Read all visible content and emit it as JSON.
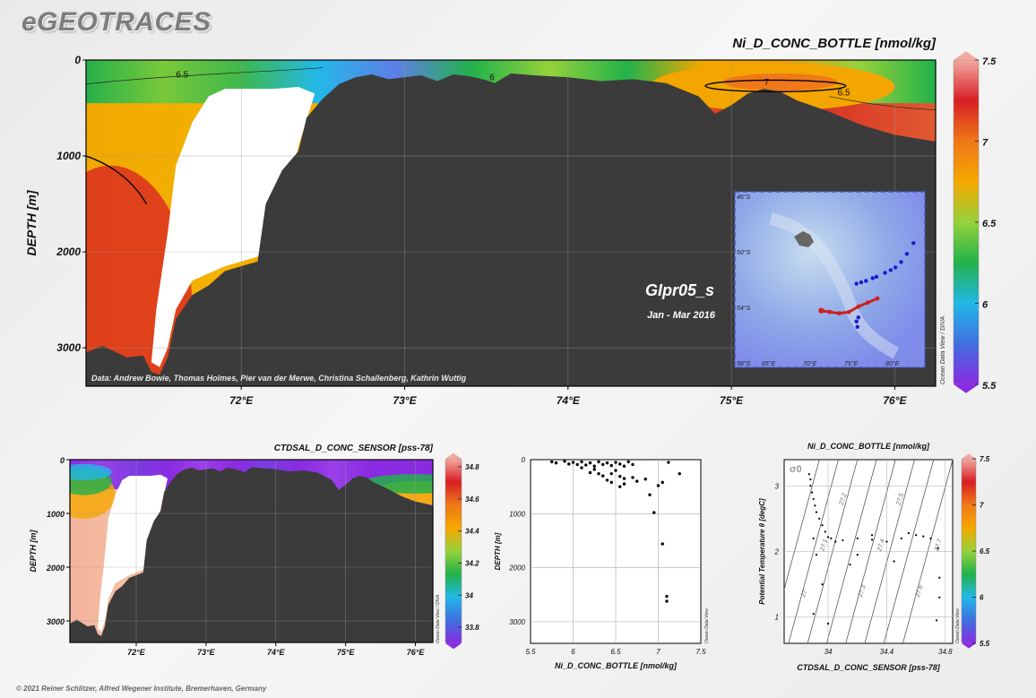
{
  "header": {
    "brand": "eGEOTRACES"
  },
  "footer": {
    "copyright": "© 2021 Reiner Schlitzer, Alfred Wegener Institute, Bremerhaven, Germany"
  },
  "colors": {
    "land": "#3b3b3b",
    "background": "#efefef",
    "track": "#cc2222",
    "stations": "#1a1ad0"
  },
  "colorbar_stops": [
    "#8a2be2",
    "#3f6fe0",
    "#22b8e8",
    "#22b24a",
    "#96d23a",
    "#f6a700",
    "#f07818",
    "#d81e24",
    "#f2a9a0"
  ],
  "chart_data": [
    {
      "id": "main_section",
      "type": "section-contour",
      "title": "Ni_D_CONC_BOTTLE [nmol/kg]",
      "ylabel": "DEPTH [m]",
      "x_ticks": [
        "72°E",
        "73°E",
        "74°E",
        "75°E",
        "76°E"
      ],
      "y_ticks": [
        "0",
        "1000",
        "2000",
        "3000"
      ],
      "xlim": [
        71.05,
        76.25
      ],
      "ylim": [
        3400,
        0
      ],
      "colorbar": {
        "ticks": [
          "7.5",
          "7",
          "6.5",
          "6",
          "5.5"
        ],
        "range": [
          5.5,
          7.5
        ]
      },
      "contour_labels": [
        "6.5",
        "6",
        "7",
        "6.5"
      ],
      "credit": "Data: Andrew Bowie, Thomas Holmes, Pier van der Merwe, Christina Schallenberg, Kathrin Wuttig",
      "inset": {
        "cruise": "GIpr05_s",
        "period": "Jan - Mar 2016",
        "lat_ticks": [
          "46°S",
          "50°S",
          "54°S",
          "58°S"
        ],
        "lon_ticks": [
          "65°E",
          "70°E",
          "75°E",
          "80°E"
        ]
      },
      "side_label": "Ocean Data View / DIVA"
    },
    {
      "id": "salinity_section",
      "type": "section-contour",
      "title": "CTDSAL_D_CONC_SENSOR [pss-78]",
      "ylabel": "DEPTH [m]",
      "x_ticks": [
        "72°E",
        "73°E",
        "74°E",
        "75°E",
        "76°E"
      ],
      "y_ticks": [
        "0",
        "1000",
        "2000",
        "3000"
      ],
      "xlim": [
        71.05,
        76.25
      ],
      "ylim": [
        3400,
        0
      ],
      "colorbar": {
        "ticks": [
          "34.8",
          "34.6",
          "34.4",
          "34.2",
          "34",
          "33.8"
        ],
        "range": [
          33.7,
          34.85
        ]
      },
      "side_label": "Ocean Data View / DIVA"
    },
    {
      "id": "profile_scatter",
      "type": "scatter",
      "xlabel": "Ni_D_CONC_BOTTLE [nmol/kg]",
      "ylabel": "DEPTH [m]",
      "x_ticks": [
        "5.5",
        "6",
        "6.5",
        "7",
        "7.5"
      ],
      "y_ticks": [
        "0",
        "1000",
        "2000",
        "3000"
      ],
      "xlim": [
        5.5,
        7.5
      ],
      "ylim": [
        3400,
        0
      ],
      "side_label": "Ocean Data View",
      "points": [
        [
          5.75,
          40
        ],
        [
          5.8,
          60
        ],
        [
          5.9,
          30
        ],
        [
          5.95,
          80
        ],
        [
          6.0,
          50
        ],
        [
          6.05,
          90
        ],
        [
          6.1,
          40
        ],
        [
          6.15,
          100
        ],
        [
          6.2,
          60
        ],
        [
          6.25,
          120
        ],
        [
          6.3,
          40
        ],
        [
          6.35,
          90
        ],
        [
          6.4,
          60
        ],
        [
          6.45,
          110
        ],
        [
          6.5,
          50
        ],
        [
          6.55,
          80
        ],
        [
          6.6,
          120
        ],
        [
          6.65,
          40
        ],
        [
          6.7,
          90
        ],
        [
          6.35,
          300
        ],
        [
          6.4,
          380
        ],
        [
          6.45,
          420
        ],
        [
          6.55,
          310
        ],
        [
          6.6,
          350
        ],
        [
          6.7,
          330
        ],
        [
          6.75,
          400
        ],
        [
          6.85,
          360
        ],
        [
          6.9,
          650
        ],
        [
          6.95,
          980
        ],
        [
          7.0,
          480
        ],
        [
          7.05,
          420
        ],
        [
          7.12,
          50
        ],
        [
          7.25,
          260
        ],
        [
          6.2,
          240
        ],
        [
          6.3,
          260
        ],
        [
          6.5,
          200
        ],
        [
          6.55,
          500
        ],
        [
          6.45,
          260
        ],
        [
          7.05,
          1560
        ],
        [
          7.1,
          2530
        ],
        [
          7.1,
          2620
        ],
        [
          6.6,
          450
        ],
        [
          6.25,
          180
        ],
        [
          6.1,
          150
        ]
      ]
    },
    {
      "id": "ts_diagram",
      "type": "scatter",
      "title": "Ni_D_CONC_BOTTLE [nmol/kg]",
      "xlabel": "CTDSAL_D_CONC_SENSOR [pss-78]",
      "ylabel": "Potential Temperature θ [degC]",
      "x_ticks": [
        "34",
        "34.4",
        "34.8"
      ],
      "y_ticks": [
        "3",
        "2",
        "1"
      ],
      "xlim": [
        33.7,
        34.85
      ],
      "ylim": [
        0.6,
        3.4
      ],
      "sigma_label": "σ0",
      "isopycnal_labels": [
        "27",
        "27.1",
        "27.2",
        "27.3",
        "27.4",
        "27.5",
        "27.6",
        "27.7"
      ],
      "colorbar": {
        "ticks": [
          "7.5",
          "7",
          "6.5",
          "6",
          "5.5"
        ],
        "range": [
          5.5,
          7.5
        ]
      },
      "side_label": "Ocean Data View",
      "points": [
        [
          33.87,
          3.18
        ],
        [
          33.88,
          3.1
        ],
        [
          33.88,
          3.0
        ],
        [
          33.89,
          2.9
        ],
        [
          33.9,
          2.8
        ],
        [
          33.91,
          2.7
        ],
        [
          33.92,
          2.6
        ],
        [
          33.94,
          2.5
        ],
        [
          33.96,
          2.4
        ],
        [
          33.98,
          2.3
        ],
        [
          34.0,
          2.22
        ],
        [
          34.02,
          2.2
        ],
        [
          34.1,
          2.17
        ],
        [
          34.2,
          2.2
        ],
        [
          34.3,
          2.18
        ],
        [
          34.4,
          2.15
        ],
        [
          34.5,
          2.2
        ],
        [
          34.55,
          2.28
        ],
        [
          34.6,
          2.25
        ],
        [
          34.65,
          2.23
        ],
        [
          34.7,
          2.2
        ],
        [
          34.75,
          2.05
        ],
        [
          34.76,
          1.6
        ],
        [
          34.76,
          1.3
        ],
        [
          34.74,
          0.95
        ],
        [
          33.96,
          1.5
        ],
        [
          33.92,
          1.95
        ],
        [
          33.9,
          2.2
        ],
        [
          34.05,
          2.15
        ],
        [
          34.3,
          2.25
        ],
        [
          34.2,
          1.95
        ],
        [
          34.15,
          1.8
        ],
        [
          34.45,
          1.85
        ],
        [
          33.9,
          1.05
        ],
        [
          34.0,
          0.9
        ]
      ]
    }
  ]
}
